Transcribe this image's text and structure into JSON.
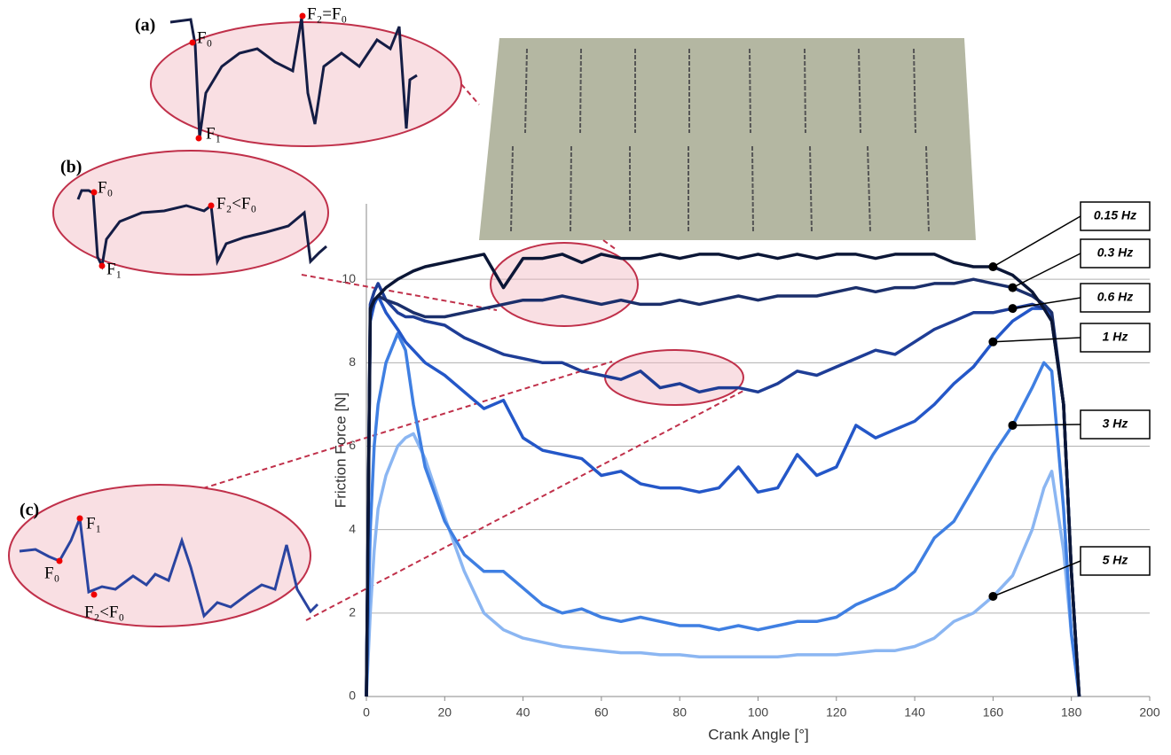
{
  "chart_data": {
    "type": "line",
    "x_label": "Crank Angle [°]",
    "y_label": "Friction Force [N]",
    "x": [
      0,
      1,
      2,
      3,
      5,
      8,
      10,
      12,
      15,
      20,
      25,
      30,
      35,
      40,
      45,
      50,
      55,
      60,
      65,
      70,
      75,
      80,
      85,
      90,
      95,
      100,
      105,
      110,
      115,
      120,
      125,
      130,
      135,
      140,
      145,
      150,
      155,
      160,
      165,
      170,
      173,
      175,
      178,
      180,
      182
    ],
    "series": [
      {
        "name": "0.15 Hz",
        "color": "#0b1636",
        "values": [
          0,
          9.3,
          9.5,
          9.6,
          9.8,
          10,
          10.1,
          10.2,
          10.3,
          10.4,
          10.5,
          10.6,
          9.8,
          10.5,
          10.5,
          10.6,
          10.4,
          10.6,
          10.5,
          10.5,
          10.6,
          10.5,
          10.6,
          10.6,
          10.5,
          10.6,
          10.5,
          10.6,
          10.5,
          10.6,
          10.6,
          10.5,
          10.6,
          10.6,
          10.6,
          10.4,
          10.3,
          10.3,
          10.1,
          9.7,
          9.3,
          9,
          7,
          3,
          0
        ]
      },
      {
        "name": "0.3 Hz",
        "color": "#1b2f6b",
        "values": [
          0,
          9.2,
          9.5,
          9.6,
          9.5,
          9.4,
          9.3,
          9.2,
          9.1,
          9.1,
          9.2,
          9.3,
          9.4,
          9.5,
          9.5,
          9.6,
          9.5,
          9.4,
          9.5,
          9.4,
          9.4,
          9.5,
          9.4,
          9.5,
          9.6,
          9.5,
          9.6,
          9.6,
          9.6,
          9.7,
          9.8,
          9.7,
          9.8,
          9.8,
          9.9,
          9.9,
          10,
          9.9,
          9.8,
          9.6,
          9.4,
          9.2,
          7,
          3,
          0
        ]
      },
      {
        "name": "0.6 Hz",
        "color": "#1e3d96",
        "values": [
          0,
          9.4,
          9.7,
          9.9,
          9.5,
          9.2,
          9.1,
          9.1,
          9,
          8.9,
          8.6,
          8.4,
          8.2,
          8.1,
          8,
          8,
          7.8,
          7.7,
          7.6,
          7.8,
          7.4,
          7.5,
          7.3,
          7.4,
          7.4,
          7.3,
          7.5,
          7.8,
          7.7,
          7.9,
          8.1,
          8.3,
          8.2,
          8.5,
          8.8,
          9,
          9.2,
          9.2,
          9.3,
          9.4,
          9.3,
          9,
          7,
          3,
          0
        ]
      },
      {
        "name": "1 Hz",
        "color": "#2457c8",
        "values": [
          0,
          9,
          9.4,
          9.6,
          9.2,
          8.8,
          8.5,
          8.3,
          8,
          7.7,
          7.3,
          6.9,
          7.1,
          6.2,
          5.9,
          5.8,
          5.7,
          5.3,
          5.4,
          5.1,
          5,
          5,
          4.9,
          5,
          5.5,
          4.9,
          5,
          5.8,
          5.3,
          5.5,
          6.5,
          6.2,
          6.4,
          6.6,
          7,
          7.5,
          7.9,
          8.5,
          9,
          9.3,
          9.3,
          9.1,
          7,
          3,
          0
        ]
      },
      {
        "name": "3 Hz",
        "color": "#3f7fe2",
        "values": [
          0,
          4,
          6,
          7,
          8,
          8.7,
          8.3,
          7,
          5.5,
          4.2,
          3.4,
          3,
          3,
          2.6,
          2.2,
          2,
          2.1,
          1.9,
          1.8,
          1.9,
          1.8,
          1.7,
          1.7,
          1.6,
          1.7,
          1.6,
          1.7,
          1.8,
          1.8,
          1.9,
          2.2,
          2.4,
          2.6,
          3,
          3.8,
          4.2,
          5,
          5.8,
          6.5,
          7.4,
          8,
          7.8,
          4.5,
          1.5,
          0
        ]
      },
      {
        "name": "5 Hz",
        "color": "#8bb6f2",
        "values": [
          0,
          2,
          3.5,
          4.5,
          5.3,
          6,
          6.2,
          6.3,
          5.7,
          4.3,
          3,
          2,
          1.6,
          1.4,
          1.3,
          1.2,
          1.15,
          1.1,
          1.05,
          1.05,
          1,
          1,
          0.95,
          0.95,
          0.95,
          0.95,
          0.95,
          1,
          1,
          1,
          1.05,
          1.1,
          1.1,
          1.2,
          1.4,
          1.8,
          2,
          2.4,
          2.9,
          4,
          5,
          5.4,
          3.5,
          1.5,
          0
        ]
      }
    ],
    "xlim": [
      0,
      200
    ],
    "xticks": [
      0,
      20,
      40,
      60,
      80,
      100,
      120,
      140,
      160,
      180,
      200
    ],
    "ylim": [
      0,
      12
    ],
    "yticks": [
      0,
      2,
      4,
      6,
      8,
      10
    ],
    "grid": true,
    "insets": [
      {
        "label": "(a)",
        "points": [
          "F₀",
          "F₁",
          "F₂=F₀"
        ]
      },
      {
        "label": "(b)",
        "points": [
          "F₀",
          "F₁",
          "F₂<F₀"
        ]
      },
      {
        "label": "(c)",
        "points": [
          "F₀",
          "F₁",
          "F₂<F₀"
        ]
      }
    ]
  }
}
